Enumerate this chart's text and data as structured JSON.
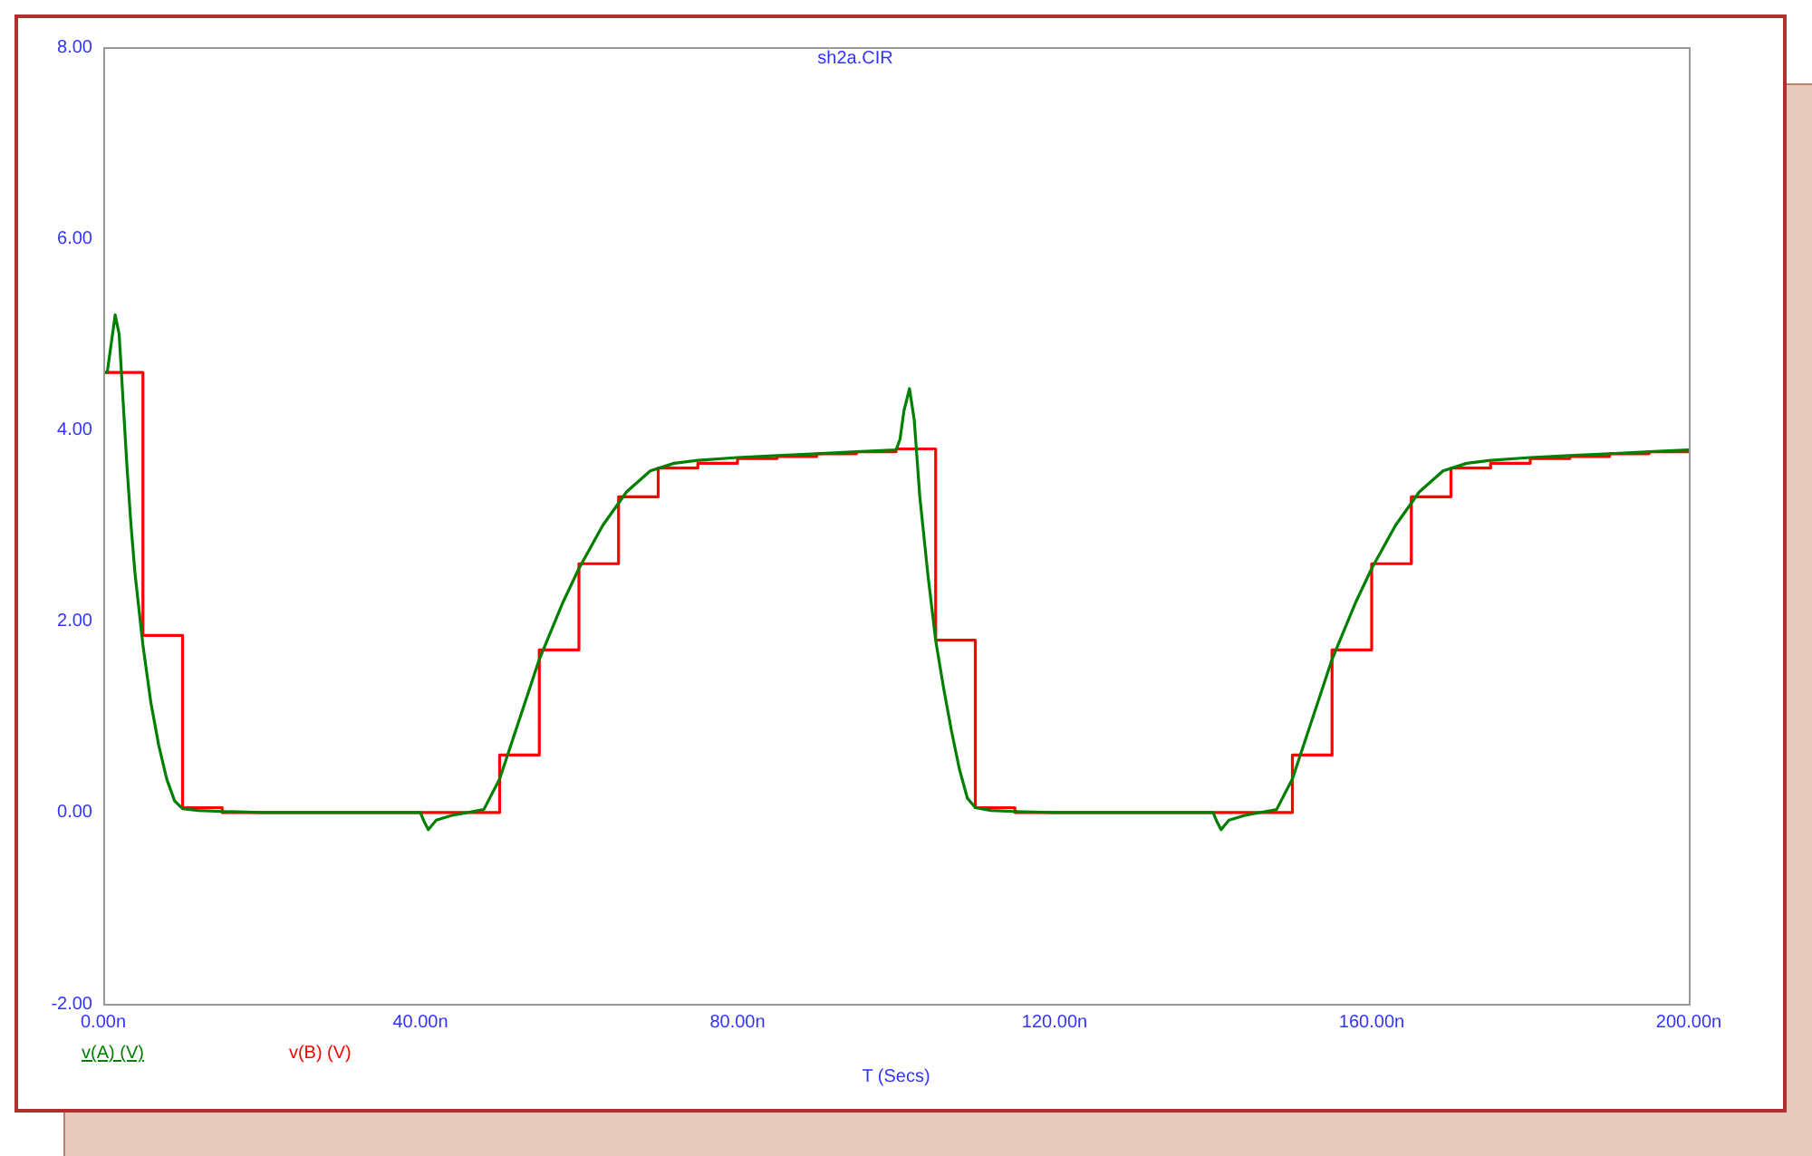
{
  "chart_data": {
    "type": "line",
    "title": "sh2a.CIR",
    "xlabel": "T (Secs)",
    "xlim": [
      0,
      200
    ],
    "xticks": [
      {
        "value": 0,
        "label": "0.00n"
      },
      {
        "value": 40,
        "label": "40.00n"
      },
      {
        "value": 80,
        "label": "80.00n"
      },
      {
        "value": 120,
        "label": "120.00n"
      },
      {
        "value": 160,
        "label": "160.00n"
      },
      {
        "value": 200,
        "label": "200.00n"
      }
    ],
    "ylim": [
      -2,
      8
    ],
    "yticks": [
      {
        "value": -2,
        "label": "-2.00"
      },
      {
        "value": 0,
        "label": "0.00"
      },
      {
        "value": 2,
        "label": "2.00"
      },
      {
        "value": 4,
        "label": "4.00"
      },
      {
        "value": 6,
        "label": "6.00"
      },
      {
        "value": 8,
        "label": "8.00"
      }
    ],
    "legend": "bottom left",
    "marker": "none",
    "line_style": "solid",
    "series": [
      {
        "name": "v(A) (V)",
        "color": "#008000",
        "x": [
          0,
          0.5,
          1,
          1.5,
          2,
          2.5,
          3,
          3.5,
          4,
          5,
          6,
          7,
          8,
          9,
          10,
          12,
          15,
          20,
          30,
          40,
          40.5,
          41,
          42,
          44,
          46,
          48,
          50,
          52,
          55,
          58,
          60,
          63,
          66,
          69,
          72,
          75,
          80,
          85,
          90,
          95,
          100,
          100.5,
          101,
          101.7,
          102.3,
          103,
          104,
          105,
          106,
          107,
          108,
          109,
          110,
          112,
          115,
          120,
          130,
          140,
          140.5,
          141,
          142,
          144,
          146,
          148,
          150,
          152,
          155,
          158,
          160,
          163,
          166,
          169,
          172,
          175,
          180,
          185,
          190,
          195,
          200
        ],
        "values": [
          4.6,
          4.6,
          4.9,
          5.2,
          5.0,
          4.3,
          3.6,
          3.0,
          2.5,
          1.75,
          1.15,
          0.7,
          0.35,
          0.12,
          0.04,
          0.02,
          0.01,
          0,
          0,
          0,
          -0.1,
          -0.18,
          -0.08,
          -0.03,
          0,
          0.03,
          0.35,
          0.85,
          1.6,
          2.2,
          2.55,
          3.0,
          3.35,
          3.57,
          3.65,
          3.68,
          3.71,
          3.73,
          3.75,
          3.77,
          3.79,
          3.9,
          4.2,
          4.43,
          4.1,
          3.3,
          2.5,
          1.8,
          1.3,
          0.85,
          0.45,
          0.15,
          0.05,
          0.02,
          0.01,
          0,
          0,
          0,
          -0.1,
          -0.18,
          -0.08,
          -0.03,
          0,
          0.03,
          0.35,
          0.85,
          1.6,
          2.2,
          2.55,
          3.0,
          3.35,
          3.57,
          3.65,
          3.68,
          3.71,
          3.73,
          3.75,
          3.77,
          3.79
        ]
      },
      {
        "name": "v(B) (V)",
        "type": "step",
        "color": "#ff0000",
        "x": [
          0,
          5,
          10,
          15,
          20,
          25,
          30,
          35,
          40,
          45,
          50,
          55,
          60,
          65,
          70,
          75,
          80,
          85,
          90,
          95,
          100,
          105,
          110,
          115,
          120,
          125,
          130,
          135,
          140,
          145,
          150,
          155,
          160,
          165,
          170,
          175,
          180,
          185,
          190,
          195,
          200
        ],
        "values": [
          4.6,
          1.85,
          0.05,
          0,
          0,
          0,
          0,
          0,
          0,
          0,
          0.6,
          1.7,
          2.6,
          3.3,
          3.6,
          3.65,
          3.7,
          3.72,
          3.75,
          3.77,
          3.8,
          1.8,
          0.05,
          0,
          0,
          0,
          0,
          0,
          0,
          0,
          0.6,
          1.7,
          2.6,
          3.3,
          3.6,
          3.65,
          3.7,
          3.72,
          3.75,
          3.77,
          3.78
        ]
      }
    ]
  }
}
